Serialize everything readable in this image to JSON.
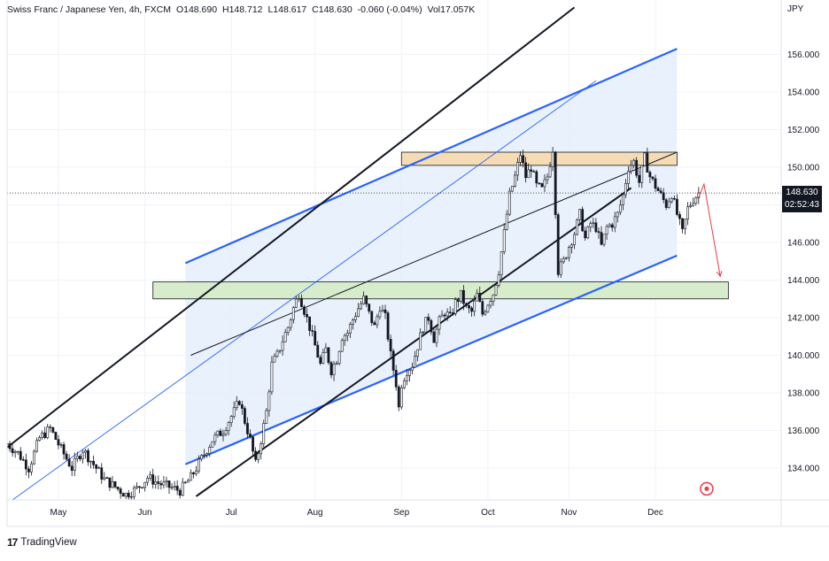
{
  "header": {
    "symbol": "Swiss Franc / Japanese Yen, 4h, FXCM",
    "open": "O148.690",
    "high": "H148.712",
    "low": "L148.617",
    "close": "C148.630",
    "change": "-0.060 (-0.04%)",
    "volume": "Vol17.057K"
  },
  "axis_unit": "JPY",
  "last_price": {
    "value": "148.630",
    "countdown": "02:52:43"
  },
  "branding": "TradingView",
  "colors": {
    "up": "#131722",
    "down": "#131722",
    "channel": "#2962ff",
    "channel_fill": "#e3edfb",
    "resistance_fill": "#f6dcb4",
    "support_fill": "#d7eccb",
    "projection": "#f23645",
    "trendline": "#131722"
  },
  "chart_data": {
    "type": "candlestick",
    "timeframe": "4h",
    "x_ticks": [
      "May",
      "Jun",
      "Jul",
      "Aug",
      "Sep",
      "Oct",
      "Nov",
      "Dec"
    ],
    "y_ticks": [
      134,
      136,
      138,
      140,
      142,
      144,
      146,
      148,
      150,
      152,
      154,
      156
    ],
    "ylim": [
      132.5,
      158.5
    ],
    "last_price": 148.63,
    "price_path": [
      [
        0,
        135.3
      ],
      [
        4,
        134.8
      ],
      [
        8,
        134.0
      ],
      [
        12,
        135.6
      ],
      [
        16,
        136.1
      ],
      [
        20,
        135.0
      ],
      [
        24,
        134.0
      ],
      [
        28,
        135.0
      ],
      [
        32,
        134.2
      ],
      [
        36,
        133.4
      ],
      [
        40,
        133.0
      ],
      [
        44,
        132.6
      ],
      [
        48,
        132.9
      ],
      [
        52,
        133.5
      ],
      [
        56,
        133.2
      ],
      [
        60,
        133.0
      ],
      [
        64,
        132.8
      ],
      [
        68,
        133.5
      ],
      [
        72,
        134.5
      ],
      [
        76,
        135.5
      ],
      [
        80,
        136.0
      ],
      [
        84,
        137.0
      ],
      [
        86,
        137.6
      ],
      [
        88,
        136.5
      ],
      [
        90,
        135.5
      ],
      [
        92,
        134.2
      ],
      [
        94,
        135.5
      ],
      [
        96,
        137.0
      ],
      [
        98,
        139.5
      ],
      [
        100,
        140.0
      ],
      [
        102,
        140.8
      ],
      [
        104,
        141.5
      ],
      [
        106,
        142.5
      ],
      [
        108,
        143.3
      ],
      [
        110,
        142.4
      ],
      [
        112,
        141.5
      ],
      [
        114,
        140.5
      ],
      [
        116,
        139.5
      ],
      [
        118,
        140.3
      ],
      [
        120,
        139.2
      ],
      [
        122,
        139.8
      ],
      [
        124,
        141.0
      ],
      [
        126,
        141.2
      ],
      [
        128,
        141.9
      ],
      [
        130,
        142.5
      ],
      [
        132,
        143.0
      ],
      [
        134,
        142.2
      ],
      [
        136,
        141.5
      ],
      [
        138,
        142.6
      ],
      [
        140,
        142.0
      ],
      [
        142,
        140.0
      ],
      [
        144,
        138.5
      ],
      [
        145,
        137.2
      ],
      [
        146,
        138.5
      ],
      [
        148,
        139.2
      ],
      [
        150,
        139.5
      ],
      [
        152,
        140.5
      ],
      [
        154,
        141.5
      ],
      [
        156,
        142.0
      ],
      [
        158,
        140.9
      ],
      [
        160,
        141.8
      ],
      [
        162,
        142.3
      ],
      [
        164,
        142.0
      ],
      [
        166,
        142.8
      ],
      [
        168,
        143.2
      ],
      [
        170,
        142.5
      ],
      [
        172,
        142.3
      ],
      [
        174,
        143.2
      ],
      [
        176,
        142.2
      ],
      [
        178,
        142.8
      ],
      [
        180,
        143.3
      ],
      [
        182,
        144.5
      ],
      [
        184,
        146.5
      ],
      [
        186,
        148.5
      ],
      [
        188,
        149.5
      ],
      [
        190,
        150.7
      ],
      [
        192,
        149.5
      ],
      [
        194,
        150.0
      ],
      [
        196,
        149.0
      ],
      [
        198,
        148.8
      ],
      [
        200,
        149.5
      ],
      [
        202,
        151.0
      ],
      [
        204,
        144.5
      ],
      [
        206,
        145.0
      ],
      [
        208,
        145.8
      ],
      [
        210,
        146.5
      ],
      [
        212,
        147.5
      ],
      [
        214,
        146.2
      ],
      [
        216,
        147.0
      ],
      [
        218,
        146.8
      ],
      [
        220,
        145.8
      ],
      [
        222,
        146.8
      ],
      [
        224,
        147.0
      ],
      [
        226,
        147.5
      ],
      [
        228,
        148.5
      ],
      [
        230,
        150.0
      ],
      [
        232,
        150.3
      ],
      [
        234,
        149.2
      ],
      [
        236,
        150.5
      ],
      [
        238,
        149.5
      ],
      [
        240,
        149.0
      ],
      [
        242,
        148.5
      ],
      [
        244,
        148.0
      ],
      [
        246,
        148.6
      ],
      [
        248,
        147.5
      ],
      [
        250,
        146.5
      ],
      [
        252,
        147.8
      ],
      [
        254,
        148.3
      ],
      [
        256,
        148.63
      ]
    ],
    "n_bars": 257,
    "x_tick_bars": [
      19,
      51,
      83,
      114,
      146,
      178,
      208,
      240
    ],
    "channel_upper": [
      [
        66,
        144.9
      ],
      [
        248,
        156.3
      ]
    ],
    "channel_lower": [
      [
        66,
        134.2
      ],
      [
        248,
        145.3
      ]
    ],
    "outer_channel_upper": [
      [
        0,
        135.1
      ],
      [
        210,
        158.5
      ]
    ],
    "outer_channel_lower": [
      [
        70,
        132.5
      ],
      [
        231,
        148.9
      ]
    ],
    "trendline_long": [
      [
        0,
        132.1
      ],
      [
        218,
        154.6
      ]
    ],
    "trendline_mid": [
      [
        68,
        140.0
      ],
      [
        248,
        150.8
      ]
    ],
    "resistance_zone": {
      "x_start": 146,
      "x_end": 248,
      "y_top": 150.8,
      "y_bottom": 150.1
    },
    "support_zone": {
      "x_start": 54,
      "x_end": 267,
      "y_top": 143.9,
      "y_bottom": 143.0
    },
    "projection": [
      [
        256,
        148.4
      ],
      [
        258,
        149.1
      ],
      [
        264,
        144.2
      ]
    ],
    "marker": {
      "x_bar": 259,
      "price": 132.9
    }
  }
}
